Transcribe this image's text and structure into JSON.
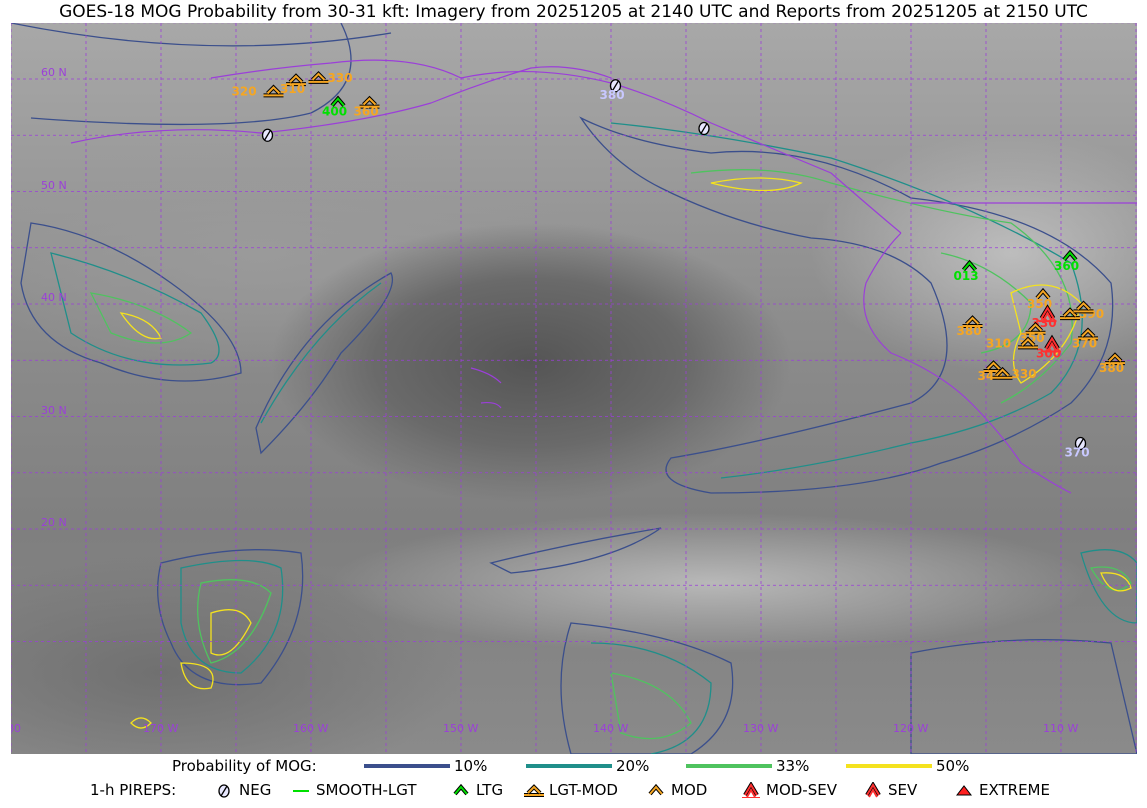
{
  "title": "GOES-18 MOG Probability from 30-31 kft: Imagery from 20251205 at 2140 UTC and Reports from 20251205 at 2150 UTC",
  "map": {
    "lat_labels": [
      {
        "lat": 60,
        "text": "60 N"
      },
      {
        "lat": 50,
        "text": "50 N"
      },
      {
        "lat": 40,
        "text": "40 N"
      },
      {
        "lat": 30,
        "text": "30 N"
      },
      {
        "lat": 20,
        "text": "20 N"
      }
    ],
    "lon_labels": [
      {
        "lon": 180,
        "text": "180"
      },
      {
        "lon": 170,
        "text": "170 W"
      },
      {
        "lon": 160,
        "text": "160 W"
      },
      {
        "lon": 150,
        "text": "150 W"
      },
      {
        "lon": 140,
        "text": "140 W"
      },
      {
        "lon": 130,
        "text": "130 W"
      },
      {
        "lon": 120,
        "text": "120 W"
      },
      {
        "lon": 110,
        "text": "110 W"
      }
    ],
    "grid_color": "#9b3fd9",
    "coast_color": "#9b3fd9"
  },
  "legend": {
    "probability_label": "Probability of MOG:",
    "probability_levels": [
      {
        "label": "10%",
        "color": "#3b4f8c"
      },
      {
        "label": "20%",
        "color": "#1f8f8a"
      },
      {
        "label": "33%",
        "color": "#4fc35f"
      },
      {
        "label": "50%",
        "color": "#f4e21e"
      }
    ],
    "pireps_label": "1-h PIREPS:",
    "pirep_types": [
      {
        "key": "NEG",
        "label": "NEG",
        "color": "#c8c8ff",
        "icon": "neg-circle-slash-icon"
      },
      {
        "key": "SMOOTH-LGT",
        "label": "SMOOTH-LGT",
        "color": "#00e000",
        "icon": "line-icon"
      },
      {
        "key": "LTG",
        "label": "LTG",
        "color": "#00e000",
        "icon": "caret-icon"
      },
      {
        "key": "LGT-MOD",
        "label": "LGT-MOD",
        "color": "#f5a623",
        "icon": "caret-bar-icon"
      },
      {
        "key": "MOD",
        "label": "MOD",
        "color": "#f5a623",
        "icon": "caret-icon"
      },
      {
        "key": "MOD-SEV",
        "label": "MOD-SEV",
        "color": "#ff3030",
        "icon": "double-caret-bar-icon"
      },
      {
        "key": "SEV",
        "label": "SEV",
        "color": "#ff3030",
        "icon": "double-caret-icon"
      },
      {
        "key": "EXTREME",
        "label": "EXTREME",
        "color": "#ff2020",
        "icon": "filled-triangle-icon"
      }
    ]
  },
  "reports": [
    {
      "type": "NEG",
      "lon": 139.7,
      "lat": 59.4,
      "alt": "380"
    },
    {
      "type": "NEG",
      "lon": 133.8,
      "lat": 55.6,
      "alt": ""
    },
    {
      "type": "NEG",
      "lon": 162.9,
      "lat": 55.0,
      "alt": ""
    },
    {
      "type": "NEG",
      "lon": 108.7,
      "lat": 27.6,
      "alt": "370"
    },
    {
      "type": "LGT-MOD",
      "lon": 161.0,
      "lat": 59.9,
      "alt": "310"
    },
    {
      "type": "LGT-MOD",
      "lon": 159.5,
      "lat": 60.1,
      "alt": "330"
    },
    {
      "type": "LGT-MOD",
      "lon": 162.5,
      "lat": 58.9,
      "alt": "320"
    },
    {
      "type": "LTG",
      "lon": 158.2,
      "lat": 57.9,
      "alt": "400"
    },
    {
      "type": "LGT-MOD",
      "lon": 156.1,
      "lat": 57.9,
      "alt": "360"
    },
    {
      "type": "LTG",
      "lon": 116.1,
      "lat": 43.3,
      "alt": "013"
    },
    {
      "type": "LTG",
      "lon": 109.4,
      "lat": 44.2,
      "alt": "360"
    },
    {
      "type": "MOD",
      "lon": 111.2,
      "lat": 40.8,
      "alt": "350"
    },
    {
      "type": "MOD-SEV",
      "lon": 110.9,
      "lat": 39.1,
      "alt": "330"
    },
    {
      "type": "LGT-MOD",
      "lon": 109.4,
      "lat": 39.1,
      "alt": "390"
    },
    {
      "type": "LGT-MOD",
      "lon": 108.5,
      "lat": 39.7,
      "alt": ""
    },
    {
      "type": "LGT-MOD",
      "lon": 115.9,
      "lat": 38.4,
      "alt": "380"
    },
    {
      "type": "LGT-MOD",
      "lon": 111.7,
      "lat": 37.8,
      "alt": "350"
    },
    {
      "type": "MOD-SEV",
      "lon": 110.6,
      "lat": 36.4,
      "alt": "300"
    },
    {
      "type": "LGT-MOD",
      "lon": 112.2,
      "lat": 36.5,
      "alt": "310"
    },
    {
      "type": "LGT-MOD",
      "lon": 108.2,
      "lat": 37.3,
      "alt": "370"
    },
    {
      "type": "LGT-MOD",
      "lon": 106.4,
      "lat": 35.1,
      "alt": "380"
    },
    {
      "type": "LGT-MOD",
      "lon": 114.5,
      "lat": 34.4,
      "alt": "340"
    },
    {
      "type": "LGT-MOD",
      "lon": 113.9,
      "lat": 33.8,
      "alt": "330"
    }
  ]
}
